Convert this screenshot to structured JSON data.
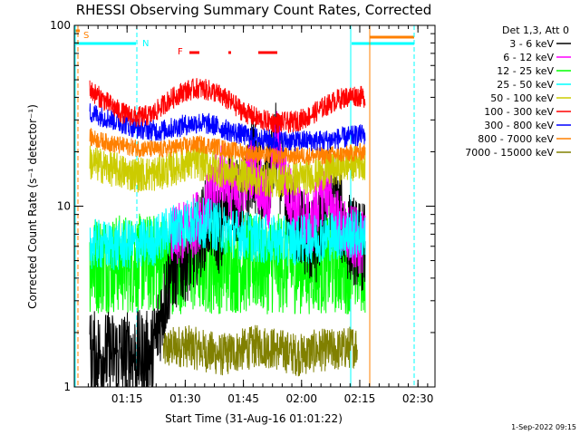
{
  "chart_data": {
    "type": "line",
    "title": "RHESSI Observing Summary Count Rates, Corrected",
    "xlabel": "Start Time (31-Aug-16 01:01:22)",
    "ylabel": "Corrected Count Rate (s⁻¹ detector⁻¹)",
    "yscale": "log",
    "ylim": [
      1,
      100
    ],
    "xlim_minutes": [
      0,
      93
    ],
    "x_ticks": [
      "01:15",
      "01:30",
      "01:45",
      "02:00",
      "02:15",
      "02:30"
    ],
    "x_tick_minutes": [
      13.6,
      28.6,
      43.6,
      58.6,
      73.6,
      88.6
    ],
    "y_tick_labels": [
      "1",
      "10",
      "100"
    ],
    "y_ticks": [
      1,
      10,
      100
    ],
    "legend_header": "Det 1,3, Att 0",
    "legend_position": "top-right, outside plot",
    "series": [
      {
        "name": "3 - 6 keV",
        "color": "#000000",
        "x": [
          4,
          10,
          20,
          25,
          30,
          35,
          38,
          40,
          43,
          46,
          49,
          52,
          55,
          58,
          62,
          66,
          70,
          74,
          75
        ],
        "y": [
          1.5,
          1.5,
          1.5,
          4.5,
          5.5,
          9.0,
          7.0,
          14.0,
          9.0,
          18.0,
          11.0,
          22.0,
          9.0,
          8.0,
          6.0,
          13.0,
          7.0,
          6.0,
          6.0
        ]
      },
      {
        "name": "6 - 12 keV",
        "color": "#ff00ff",
        "x": [
          25,
          30,
          33,
          36,
          38,
          40,
          42,
          44,
          46,
          48,
          50,
          52,
          55,
          58,
          61,
          63,
          65,
          67,
          70,
          73,
          75
        ],
        "y": [
          6.5,
          7.5,
          9.0,
          12.0,
          16.0,
          13.0,
          11.0,
          14.0,
          17.0,
          13.0,
          10.0,
          24.0,
          12.0,
          9.5,
          7.5,
          11.0,
          13.0,
          9.0,
          7.0,
          6.5,
          6.0
        ]
      },
      {
        "name": "12 - 25 keV",
        "color": "#00ff00",
        "x": [
          4,
          15,
          30,
          45,
          60,
          70,
          75
        ],
        "y": [
          4.8,
          4.8,
          4.8,
          4.8,
          4.8,
          4.8,
          4.8
        ]
      },
      {
        "name": "25 - 50 keV",
        "color": "#00ffff",
        "x": [
          4,
          10,
          20,
          25,
          30,
          35,
          40,
          45,
          50,
          55,
          60,
          65,
          70,
          75
        ],
        "y": [
          6.2,
          6.0,
          6.3,
          7.5,
          8.2,
          8.0,
          7.2,
          6.8,
          6.5,
          6.4,
          6.6,
          6.8,
          7.0,
          7.0
        ]
      },
      {
        "name": "50 - 100 keV",
        "color": "#cccc00",
        "x": [
          4,
          10,
          15,
          20,
          25,
          28,
          31,
          34,
          37,
          40,
          45,
          50,
          55,
          60,
          65,
          70,
          73,
          75
        ],
        "y": [
          17.5,
          16.0,
          15.0,
          15.0,
          16.0,
          17.0,
          17.5,
          17.0,
          16.0,
          15.5,
          14.5,
          14.0,
          14.0,
          14.5,
          15.5,
          17.0,
          17.5,
          17.5
        ]
      },
      {
        "name": "100 - 300 keV",
        "color": "#ff0000",
        "x": [
          4,
          8,
          12,
          16,
          20,
          24,
          28,
          32,
          36,
          40,
          44,
          48,
          52,
          56,
          60,
          64,
          68,
          72,
          75
        ],
        "y": [
          44,
          38,
          33,
          31,
          32,
          38,
          43,
          45,
          43,
          38,
          33,
          30,
          29,
          29,
          31,
          35,
          39,
          41,
          40
        ]
      },
      {
        "name": "300 - 800 keV",
        "color": "#0000ff",
        "x": [
          4,
          10,
          16,
          22,
          28,
          32,
          36,
          40,
          46,
          52,
          58,
          64,
          70,
          75
        ],
        "y": [
          33,
          30,
          27,
          26,
          28,
          29,
          28,
          26,
          24,
          23,
          23,
          23,
          24,
          25
        ]
      },
      {
        "name": "800 - 7000 keV",
        "color": "#ff8000",
        "x": [
          4,
          10,
          16,
          22,
          28,
          32,
          36,
          40,
          46,
          52,
          58,
          64,
          70,
          75
        ],
        "y": [
          24,
          22,
          21,
          20.5,
          21.5,
          22,
          21.5,
          20.5,
          19.5,
          19,
          19,
          19,
          19.5,
          20
        ]
      },
      {
        "name": "7000 - 15000 keV",
        "color": "#808000",
        "x": [
          23,
          28,
          33,
          38,
          43,
          48,
          53,
          58,
          63,
          68,
          73
        ],
        "y": [
          1.6,
          1.7,
          1.6,
          1.5,
          1.6,
          1.7,
          1.6,
          1.5,
          1.6,
          1.6,
          1.7
        ]
      }
    ],
    "flags": {
      "saa_label": "S",
      "night_label": "N",
      "flare_label": "F"
    }
  },
  "timestamp": "1-Sep-2022 09:15"
}
